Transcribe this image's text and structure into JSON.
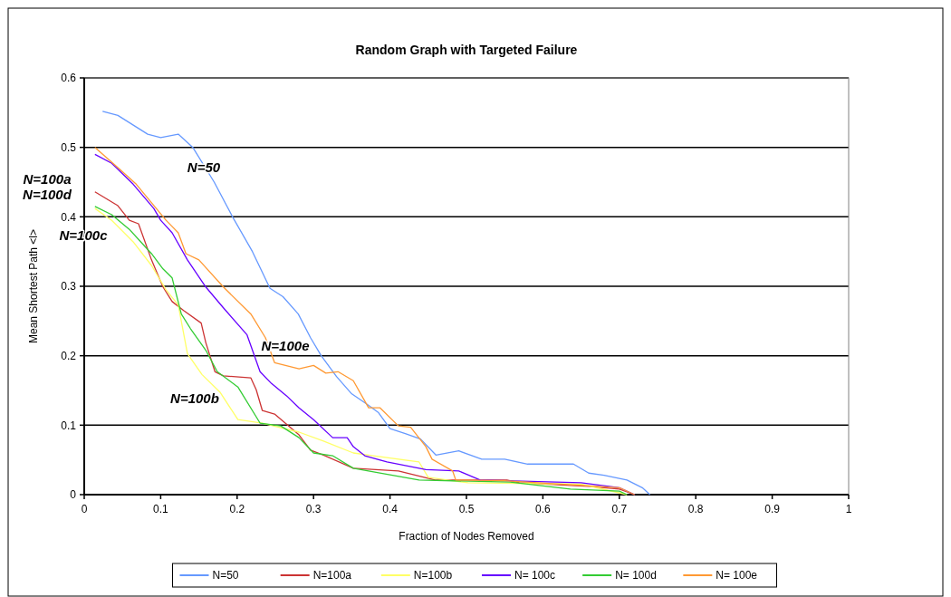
{
  "chart_data": {
    "type": "line",
    "title": "Random Graph with Targeted Failure",
    "xlabel": "Fraction of Nodes Removed",
    "ylabel": "Mean Shortest Path <l>",
    "xlim": [
      0,
      1
    ],
    "ylim": [
      0,
      0.6
    ],
    "xticks": [
      0,
      0.1,
      0.2,
      0.3,
      0.4,
      0.5,
      0.6,
      0.7,
      0.8,
      0.9,
      1
    ],
    "yticks": [
      0,
      0.1,
      0.2,
      0.3,
      0.4,
      0.5,
      0.6
    ],
    "grid": "y",
    "legend": "bottom",
    "marker": "none",
    "line_style": "solid",
    "series": [
      {
        "name": "N=50",
        "color": "#6699ff",
        "x": [
          0.024,
          0.044,
          0.083,
          0.1,
          0.123,
          0.142,
          0.17,
          0.194,
          0.22,
          0.243,
          0.26,
          0.28,
          0.296,
          0.31,
          0.33,
          0.35,
          0.37,
          0.385,
          0.4,
          0.42,
          0.44,
          0.46,
          0.49,
          0.52,
          0.55,
          0.58,
          0.64,
          0.66,
          0.68,
          0.71,
          0.73,
          0.74
        ],
        "values": [
          0.552,
          0.546,
          0.519,
          0.514,
          0.519,
          0.5,
          0.45,
          0.4,
          0.35,
          0.297,
          0.285,
          0.26,
          0.226,
          0.2,
          0.17,
          0.145,
          0.13,
          0.118,
          0.095,
          0.088,
          0.08,
          0.057,
          0.063,
          0.051,
          0.051,
          0.044,
          0.044,
          0.031,
          0.028,
          0.021,
          0.01,
          0
        ]
      },
      {
        "name": "N=100a",
        "color": "#cc3333",
        "x": [
          0.014,
          0.044,
          0.059,
          0.071,
          0.088,
          0.103,
          0.115,
          0.13,
          0.153,
          0.159,
          0.171,
          0.182,
          0.218,
          0.225,
          0.233,
          0.249,
          0.281,
          0.296,
          0.313,
          0.352,
          0.411,
          0.459,
          0.553,
          0.569,
          0.66,
          0.7,
          0.72
        ],
        "values": [
          0.436,
          0.416,
          0.395,
          0.39,
          0.338,
          0.299,
          0.278,
          0.265,
          0.247,
          0.219,
          0.177,
          0.171,
          0.168,
          0.151,
          0.121,
          0.116,
          0.086,
          0.064,
          0.057,
          0.038,
          0.034,
          0.021,
          0.021,
          0.017,
          0.012,
          0.008,
          0
        ]
      },
      {
        "name": "N=100b",
        "color": "#ffff66",
        "x": [
          0.014,
          0.036,
          0.064,
          0.088,
          0.107,
          0.123,
          0.135,
          0.154,
          0.178,
          0.201,
          0.233,
          0.281,
          0.313,
          0.352,
          0.372,
          0.438,
          0.45,
          0.502,
          0.65,
          0.71
        ],
        "values": [
          0.412,
          0.395,
          0.364,
          0.33,
          0.295,
          0.273,
          0.203,
          0.173,
          0.147,
          0.108,
          0.103,
          0.09,
          0.077,
          0.06,
          0.057,
          0.047,
          0.025,
          0.017,
          0.015,
          0
        ]
      },
      {
        "name": "N= 100c",
        "color": "#6600ff",
        "x": [
          0.014,
          0.036,
          0.064,
          0.091,
          0.1,
          0.115,
          0.135,
          0.159,
          0.182,
          0.213,
          0.23,
          0.245,
          0.265,
          0.281,
          0.3,
          0.325,
          0.344,
          0.352,
          0.367,
          0.396,
          0.447,
          0.49,
          0.518,
          0.65,
          0.7,
          0.72
        ],
        "values": [
          0.49,
          0.477,
          0.447,
          0.412,
          0.395,
          0.377,
          0.338,
          0.299,
          0.269,
          0.23,
          0.177,
          0.16,
          0.142,
          0.125,
          0.108,
          0.082,
          0.082,
          0.069,
          0.056,
          0.047,
          0.036,
          0.034,
          0.021,
          0.017,
          0.01,
          0
        ]
      },
      {
        "name": "N= 100d",
        "color": "#33cc33",
        "x": [
          0.014,
          0.036,
          0.059,
          0.088,
          0.103,
          0.115,
          0.127,
          0.139,
          0.159,
          0.174,
          0.201,
          0.23,
          0.257,
          0.281,
          0.3,
          0.325,
          0.352,
          0.438,
          0.557,
          0.636,
          0.7,
          0.71
        ],
        "values": [
          0.415,
          0.403,
          0.382,
          0.347,
          0.325,
          0.312,
          0.26,
          0.239,
          0.208,
          0.177,
          0.155,
          0.103,
          0.099,
          0.082,
          0.06,
          0.056,
          0.038,
          0.021,
          0.018,
          0.008,
          0.005,
          0
        ]
      },
      {
        "name": "N= 100e",
        "color": "#ff9933",
        "x": [
          0.014,
          0.047,
          0.068,
          0.107,
          0.123,
          0.133,
          0.15,
          0.182,
          0.218,
          0.237,
          0.249,
          0.281,
          0.3,
          0.316,
          0.332,
          0.352,
          0.372,
          0.387,
          0.411,
          0.427,
          0.447,
          0.455,
          0.482,
          0.486,
          0.55,
          0.7,
          0.72
        ],
        "values": [
          0.5,
          0.468,
          0.447,
          0.395,
          0.377,
          0.347,
          0.338,
          0.299,
          0.26,
          0.226,
          0.19,
          0.181,
          0.186,
          0.175,
          0.177,
          0.164,
          0.125,
          0.125,
          0.099,
          0.097,
          0.069,
          0.051,
          0.034,
          0.021,
          0.02,
          0.01,
          0
        ]
      }
    ],
    "annotations": [
      "N=50",
      "N=100a",
      "N=100d",
      "N=100c",
      "N=100e",
      "N=100b"
    ]
  }
}
